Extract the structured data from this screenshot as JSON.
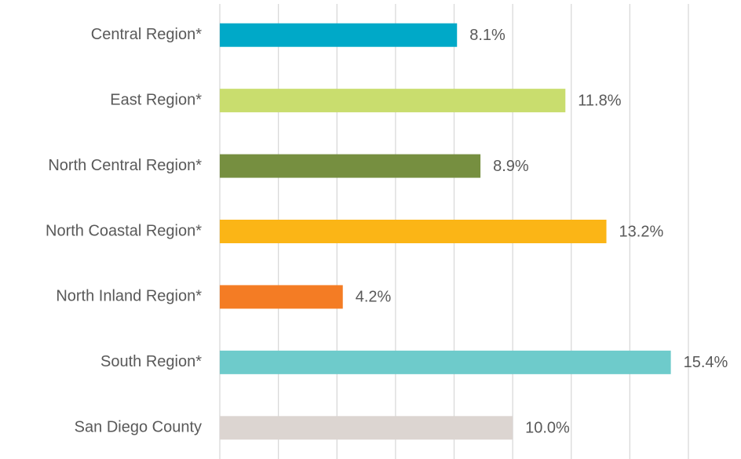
{
  "chart_data": {
    "type": "hbar",
    "categories": [
      "Central Region*",
      "East Region*",
      "North Central Region*",
      "North Coastal Region*",
      "North Inland Region*",
      "South Region*",
      "San Diego County"
    ],
    "values": [
      8.1,
      11.8,
      8.9,
      13.2,
      4.2,
      15.4,
      10.0
    ],
    "value_labels": [
      "8.1%",
      "11.8%",
      "8.9%",
      "13.2%",
      "4.2%",
      "15.4%",
      "10.0%"
    ],
    "colors": [
      "#00a9c8",
      "#c9dd6e",
      "#768f40",
      "#fbb516",
      "#f47c24",
      "#6ecbcb",
      "#dcd5d1"
    ],
    "xlim": [
      0,
      16
    ],
    "xticks": [
      0,
      2,
      4,
      6,
      8,
      10,
      12,
      14,
      16
    ],
    "grid": true
  }
}
